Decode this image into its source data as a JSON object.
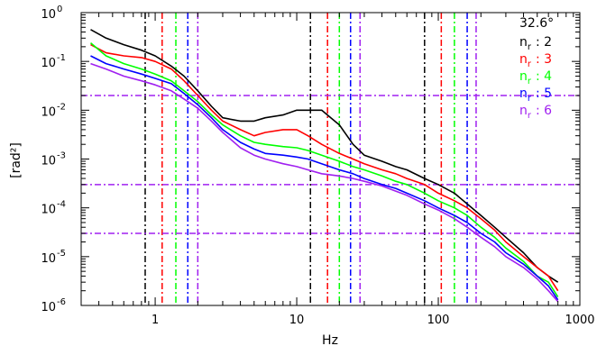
{
  "chart_data": {
    "type": "line",
    "title": "",
    "xlabel": "Hz",
    "ylabel": "[rad²]",
    "xscale": "log",
    "yscale": "log",
    "xlim": [
      0.3,
      1000
    ],
    "ylim": [
      1e-06,
      1
    ],
    "grid": false,
    "legend_title": "32.6°",
    "legend_position": "top-right",
    "x_ticks": [
      {
        "value": 1,
        "label": "1"
      },
      {
        "value": 10,
        "label": "10"
      },
      {
        "value": 100,
        "label": "100"
      },
      {
        "value": 1000,
        "label": "1000"
      }
    ],
    "y_ticks": [
      {
        "value": 1,
        "base": "10",
        "exp": "0"
      },
      {
        "value": 0.1,
        "base": "10",
        "exp": "-1"
      },
      {
        "value": 0.01,
        "base": "10",
        "exp": "-2"
      },
      {
        "value": 0.001,
        "base": "10",
        "exp": "-3"
      },
      {
        "value": 0.0001,
        "base": "10",
        "exp": "-4"
      },
      {
        "value": 1e-05,
        "base": "10",
        "exp": "-5"
      },
      {
        "value": 1e-06,
        "base": "10",
        "exp": "-6"
      }
    ],
    "series": [
      {
        "name": "n_r : 2",
        "legend_base": "n",
        "legend_sub": "r",
        "legend_value": ": 2",
        "color": "#000000",
        "x": [
          0.35,
          0.45,
          0.6,
          0.8,
          1.0,
          1.3,
          1.6,
          2.0,
          2.5,
          3.0,
          4.0,
          5.0,
          6.0,
          8.0,
          10,
          12,
          15,
          20,
          25,
          30,
          40,
          50,
          60,
          80,
          100,
          130,
          160,
          200,
          250,
          300,
          400,
          500,
          600,
          700
        ],
        "y": [
          0.45,
          0.3,
          0.22,
          0.17,
          0.13,
          0.08,
          0.05,
          0.025,
          0.012,
          0.007,
          0.006,
          0.006,
          0.007,
          0.008,
          0.01,
          0.01,
          0.01,
          0.005,
          0.002,
          0.0012,
          0.0009,
          0.0007,
          0.0006,
          0.0004,
          0.0003,
          0.0002,
          0.00012,
          7e-05,
          4e-05,
          2.5e-05,
          1.2e-05,
          6e-06,
          4e-06,
          3e-06
        ]
      },
      {
        "name": "n_r : 3",
        "legend_base": "n",
        "legend_sub": "r",
        "legend_value": ": 3",
        "color": "#ff0000",
        "x": [
          0.35,
          0.45,
          0.6,
          0.8,
          1.0,
          1.3,
          1.6,
          2.0,
          2.5,
          3.0,
          4.0,
          5.0,
          6.0,
          8.0,
          10,
          12,
          15,
          20,
          25,
          30,
          40,
          50,
          60,
          80,
          100,
          130,
          160,
          200,
          250,
          300,
          400,
          500,
          600,
          700
        ],
        "y": [
          0.22,
          0.15,
          0.13,
          0.12,
          0.1,
          0.07,
          0.04,
          0.02,
          0.01,
          0.006,
          0.004,
          0.003,
          0.0035,
          0.004,
          0.004,
          0.003,
          0.002,
          0.0013,
          0.001,
          0.0008,
          0.0006,
          0.0005,
          0.0004,
          0.0003,
          0.0002,
          0.00014,
          0.0001,
          6e-05,
          3.5e-05,
          2e-05,
          1e-05,
          6e-06,
          4e-06,
          2e-06
        ]
      },
      {
        "name": "n_r : 4",
        "legend_base": "n",
        "legend_sub": "r",
        "legend_value": ": 4",
        "color": "#00ff00",
        "x": [
          0.35,
          0.45,
          0.6,
          0.8,
          1.0,
          1.3,
          1.6,
          2.0,
          2.5,
          3.0,
          4.0,
          5.0,
          6.0,
          8.0,
          10,
          12,
          15,
          20,
          25,
          30,
          40,
          50,
          60,
          80,
          100,
          130,
          160,
          200,
          250,
          300,
          400,
          500,
          600,
          700
        ],
        "y": [
          0.24,
          0.13,
          0.09,
          0.07,
          0.055,
          0.04,
          0.025,
          0.015,
          0.008,
          0.005,
          0.003,
          0.0022,
          0.002,
          0.0018,
          0.0017,
          0.0015,
          0.0012,
          0.0009,
          0.0007,
          0.0006,
          0.00045,
          0.00035,
          0.0003,
          0.0002,
          0.00014,
          0.0001,
          7e-05,
          4e-05,
          2.5e-05,
          1.5e-05,
          8e-06,
          4e-06,
          3e-06,
          1.5e-06
        ]
      },
      {
        "name": "n_r : 5",
        "legend_base": "n",
        "legend_sub": "r",
        "legend_value": ": 5",
        "color": "#0000ff",
        "x": [
          0.35,
          0.45,
          0.6,
          0.8,
          1.0,
          1.3,
          1.6,
          2.0,
          2.5,
          3.0,
          4.0,
          5.0,
          6.0,
          8.0,
          10,
          12,
          15,
          20,
          25,
          30,
          40,
          50,
          60,
          80,
          100,
          130,
          160,
          200,
          250,
          300,
          400,
          500,
          600,
          700
        ],
        "y": [
          0.13,
          0.09,
          0.07,
          0.055,
          0.045,
          0.035,
          0.022,
          0.013,
          0.007,
          0.004,
          0.0022,
          0.0016,
          0.0013,
          0.0012,
          0.0011,
          0.001,
          0.0008,
          0.0006,
          0.0005,
          0.0004,
          0.0003,
          0.00025,
          0.0002,
          0.00014,
          0.0001,
          7e-05,
          5e-05,
          3e-05,
          2e-05,
          1.2e-05,
          7e-06,
          4e-06,
          2.5e-06,
          1.3e-06
        ]
      },
      {
        "name": "n_r : 6",
        "legend_base": "n",
        "legend_sub": "r",
        "legend_value": ": 6",
        "color": "#a020f0",
        "x": [
          0.35,
          0.45,
          0.6,
          0.8,
          1.0,
          1.3,
          1.6,
          2.0,
          2.5,
          3.0,
          4.0,
          5.0,
          6.0,
          8.0,
          10,
          12,
          15,
          20,
          25,
          30,
          40,
          50,
          60,
          80,
          100,
          130,
          160,
          200,
          250,
          300,
          400,
          500,
          600,
          700
        ],
        "y": [
          0.09,
          0.07,
          0.05,
          0.04,
          0.033,
          0.025,
          0.017,
          0.011,
          0.006,
          0.0035,
          0.0017,
          0.0012,
          0.001,
          0.0008,
          0.0007,
          0.0006,
          0.0005,
          0.00045,
          0.0004,
          0.00035,
          0.00028,
          0.00022,
          0.00018,
          0.00012,
          9e-05,
          6e-05,
          4e-05,
          2.5e-05,
          1.6e-05,
          1e-05,
          6e-06,
          3.5e-06,
          2e-06,
          1.2e-06
        ]
      }
    ],
    "vertical_lines": [
      {
        "x": 0.85,
        "color": "#000000"
      },
      {
        "x": 1.12,
        "color": "#ff0000"
      },
      {
        "x": 1.4,
        "color": "#00ff00"
      },
      {
        "x": 1.7,
        "color": "#0000ff"
      },
      {
        "x": 2.0,
        "color": "#a020f0"
      },
      {
        "x": 12.5,
        "color": "#000000"
      },
      {
        "x": 16.5,
        "color": "#ff0000"
      },
      {
        "x": 20,
        "color": "#00ff00"
      },
      {
        "x": 24,
        "color": "#0000ff"
      },
      {
        "x": 28,
        "color": "#a020f0"
      },
      {
        "x": 80,
        "color": "#000000"
      },
      {
        "x": 105,
        "color": "#ff0000"
      },
      {
        "x": 130,
        "color": "#00ff00"
      },
      {
        "x": 160,
        "color": "#0000ff"
      },
      {
        "x": 185,
        "color": "#a020f0"
      }
    ],
    "horizontal_lines": [
      {
        "y": 0.02,
        "color": "#a020f0"
      },
      {
        "y": 0.0003,
        "color": "#a020f0"
      },
      {
        "y": 3e-05,
        "color": "#a020f0"
      }
    ]
  }
}
